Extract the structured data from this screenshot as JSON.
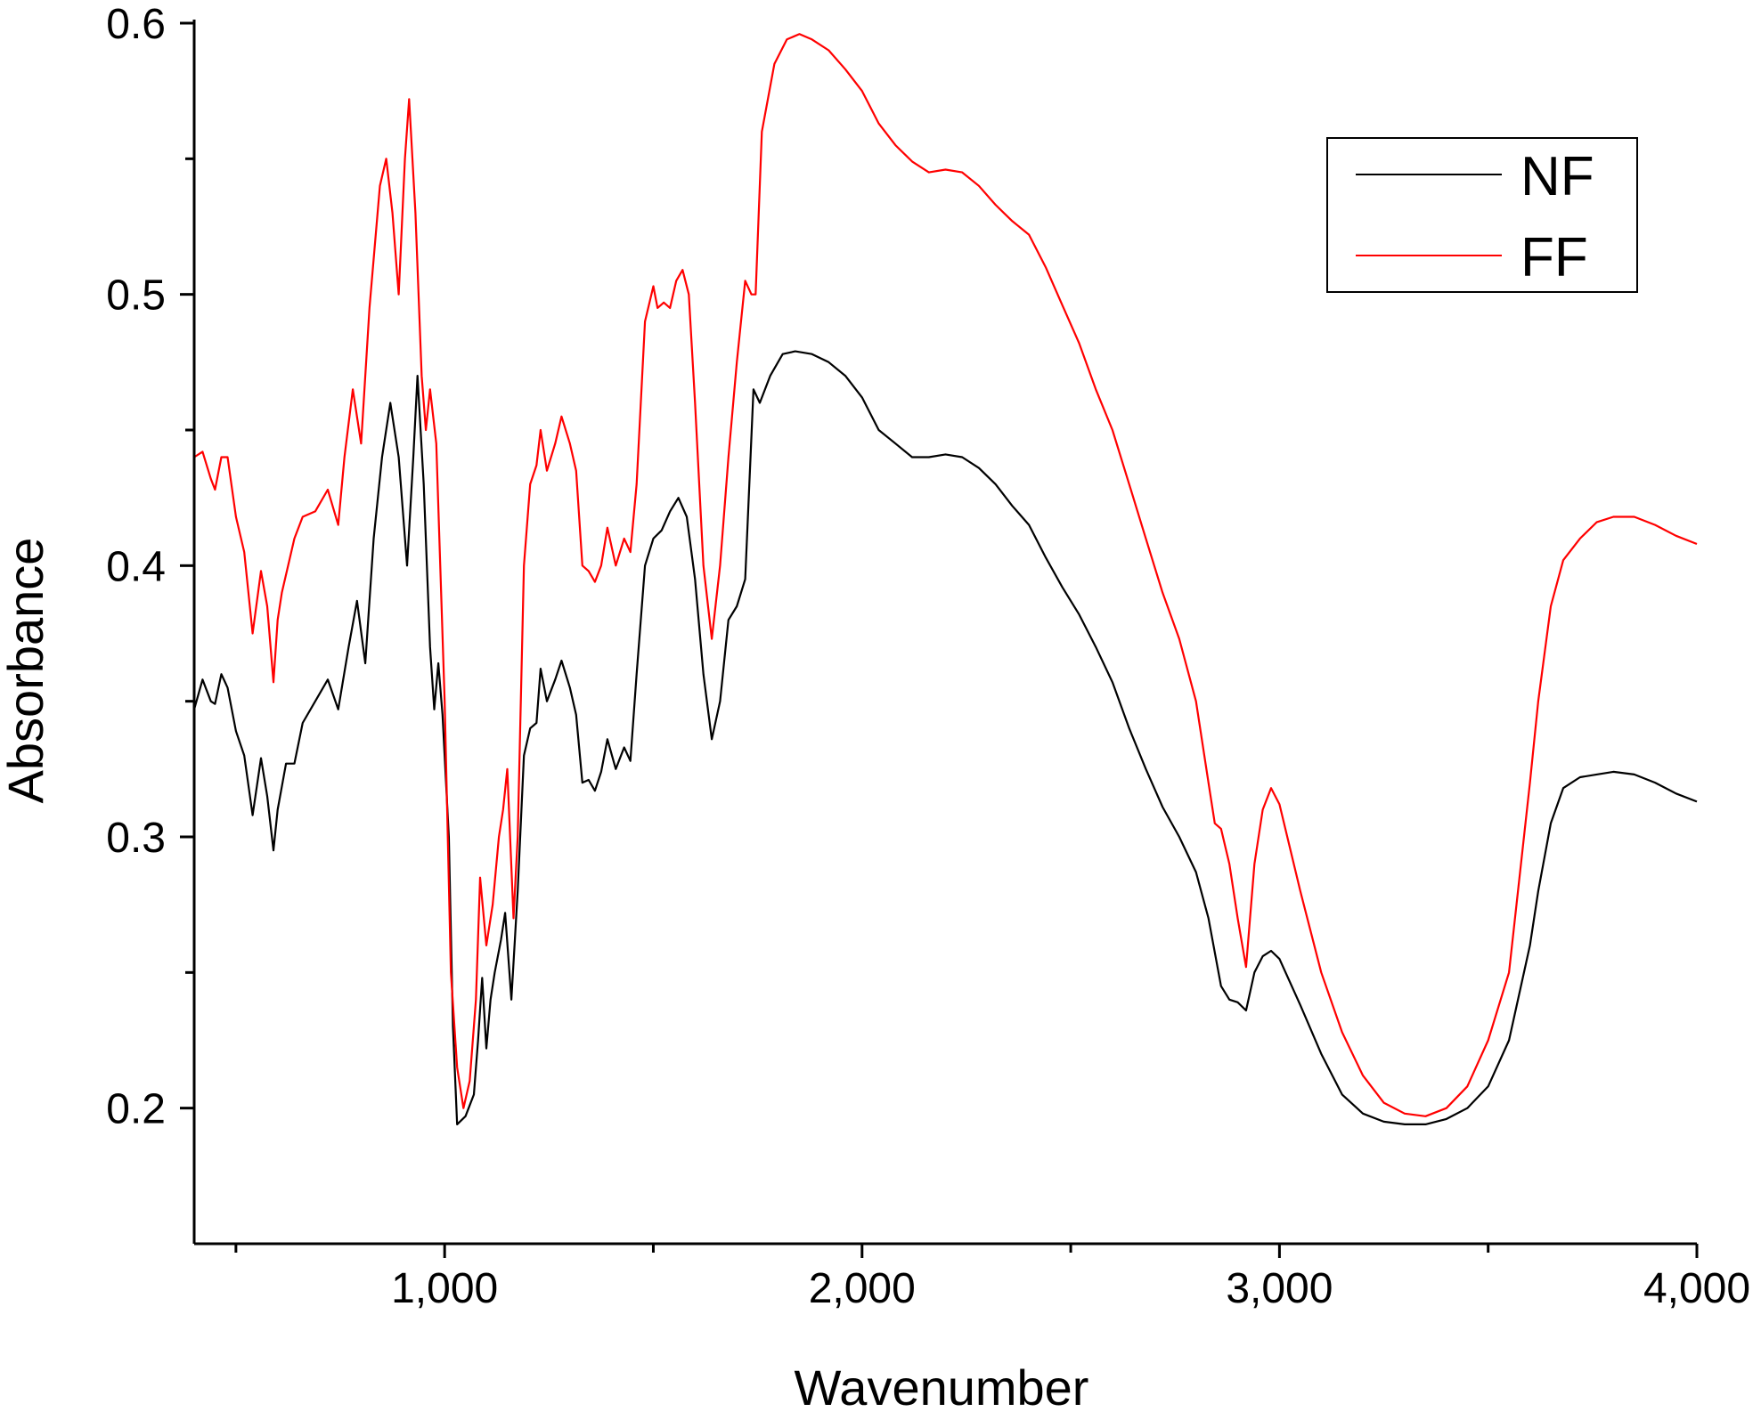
{
  "chart_data": {
    "type": "line",
    "xlabel": "Wavenumber",
    "ylabel": "Absorbance",
    "xlim": [
      400,
      4000
    ],
    "ylim": [
      0.15,
      0.6
    ],
    "x_ticks": [
      1000,
      2000,
      3000,
      4000
    ],
    "x_tick_labels": [
      "1,000",
      "2,000",
      "3,000",
      "4,000"
    ],
    "x_minor_ticks": [
      500,
      1500,
      2500,
      3500
    ],
    "y_ticks": [
      0.2,
      0.3,
      0.4,
      0.5,
      0.6
    ],
    "y_tick_labels": [
      "0.2",
      "0.3",
      "0.4",
      "0.5",
      "0.6"
    ],
    "y_minor_ticks": [
      0.25,
      0.35,
      0.45,
      0.55
    ],
    "grid": false,
    "legend_position": "top-right",
    "series": [
      {
        "name": "NF",
        "color": "#000000",
        "points": [
          [
            400,
            0.347
          ],
          [
            420,
            0.358
          ],
          [
            440,
            0.35
          ],
          [
            450,
            0.349
          ],
          [
            465,
            0.36
          ],
          [
            480,
            0.355
          ],
          [
            500,
            0.339
          ],
          [
            520,
            0.33
          ],
          [
            540,
            0.308
          ],
          [
            560,
            0.329
          ],
          [
            575,
            0.315
          ],
          [
            590,
            0.295
          ],
          [
            600,
            0.31
          ],
          [
            620,
            0.327
          ],
          [
            640,
            0.327
          ],
          [
            660,
            0.342
          ],
          [
            690,
            0.35
          ],
          [
            720,
            0.358
          ],
          [
            745,
            0.347
          ],
          [
            770,
            0.37
          ],
          [
            790,
            0.387
          ],
          [
            810,
            0.364
          ],
          [
            830,
            0.41
          ],
          [
            850,
            0.44
          ],
          [
            870,
            0.46
          ],
          [
            890,
            0.44
          ],
          [
            910,
            0.4
          ],
          [
            925,
            0.44
          ],
          [
            935,
            0.47
          ],
          [
            950,
            0.43
          ],
          [
            965,
            0.37
          ],
          [
            975,
            0.347
          ],
          [
            985,
            0.364
          ],
          [
            995,
            0.345
          ],
          [
            1010,
            0.3
          ],
          [
            1020,
            0.23
          ],
          [
            1030,
            0.194
          ],
          [
            1050,
            0.197
          ],
          [
            1070,
            0.205
          ],
          [
            1080,
            0.225
          ],
          [
            1090,
            0.248
          ],
          [
            1100,
            0.222
          ],
          [
            1110,
            0.24
          ],
          [
            1120,
            0.25
          ],
          [
            1135,
            0.262
          ],
          [
            1145,
            0.272
          ],
          [
            1160,
            0.24
          ],
          [
            1175,
            0.28
          ],
          [
            1190,
            0.33
          ],
          [
            1205,
            0.34
          ],
          [
            1220,
            0.342
          ],
          [
            1230,
            0.362
          ],
          [
            1245,
            0.35
          ],
          [
            1265,
            0.358
          ],
          [
            1280,
            0.365
          ],
          [
            1300,
            0.355
          ],
          [
            1315,
            0.345
          ],
          [
            1330,
            0.32
          ],
          [
            1345,
            0.321
          ],
          [
            1360,
            0.317
          ],
          [
            1375,
            0.324
          ],
          [
            1390,
            0.336
          ],
          [
            1410,
            0.325
          ],
          [
            1430,
            0.333
          ],
          [
            1445,
            0.328
          ],
          [
            1460,
            0.36
          ],
          [
            1480,
            0.4
          ],
          [
            1500,
            0.41
          ],
          [
            1520,
            0.413
          ],
          [
            1540,
            0.42
          ],
          [
            1560,
            0.425
          ],
          [
            1580,
            0.418
          ],
          [
            1600,
            0.395
          ],
          [
            1620,
            0.36
          ],
          [
            1640,
            0.336
          ],
          [
            1660,
            0.35
          ],
          [
            1680,
            0.38
          ],
          [
            1700,
            0.385
          ],
          [
            1720,
            0.395
          ],
          [
            1740,
            0.465
          ],
          [
            1755,
            0.46
          ],
          [
            1780,
            0.47
          ],
          [
            1810,
            0.478
          ],
          [
            1840,
            0.479
          ],
          [
            1880,
            0.478
          ],
          [
            1920,
            0.475
          ],
          [
            1960,
            0.47
          ],
          [
            2000,
            0.462
          ],
          [
            2040,
            0.45
          ],
          [
            2080,
            0.445
          ],
          [
            2120,
            0.44
          ],
          [
            2160,
            0.44
          ],
          [
            2200,
            0.441
          ],
          [
            2240,
            0.44
          ],
          [
            2280,
            0.436
          ],
          [
            2320,
            0.43
          ],
          [
            2360,
            0.422
          ],
          [
            2400,
            0.415
          ],
          [
            2440,
            0.403
          ],
          [
            2480,
            0.392
          ],
          [
            2520,
            0.382
          ],
          [
            2560,
            0.37
          ],
          [
            2600,
            0.357
          ],
          [
            2640,
            0.34
          ],
          [
            2680,
            0.325
          ],
          [
            2720,
            0.311
          ],
          [
            2760,
            0.3
          ],
          [
            2800,
            0.287
          ],
          [
            2830,
            0.27
          ],
          [
            2860,
            0.245
          ],
          [
            2880,
            0.24
          ],
          [
            2900,
            0.239
          ],
          [
            2920,
            0.236
          ],
          [
            2940,
            0.25
          ],
          [
            2960,
            0.256
          ],
          [
            2980,
            0.258
          ],
          [
            3000,
            0.255
          ],
          [
            3050,
            0.238
          ],
          [
            3100,
            0.22
          ],
          [
            3150,
            0.205
          ],
          [
            3200,
            0.198
          ],
          [
            3250,
            0.195
          ],
          [
            3300,
            0.194
          ],
          [
            3350,
            0.194
          ],
          [
            3400,
            0.196
          ],
          [
            3450,
            0.2
          ],
          [
            3500,
            0.208
          ],
          [
            3550,
            0.225
          ],
          [
            3600,
            0.26
          ],
          [
            3620,
            0.28
          ],
          [
            3650,
            0.305
          ],
          [
            3680,
            0.318
          ],
          [
            3720,
            0.322
          ],
          [
            3760,
            0.323
          ],
          [
            3800,
            0.324
          ],
          [
            3850,
            0.323
          ],
          [
            3900,
            0.32
          ],
          [
            3950,
            0.316
          ],
          [
            4000,
            0.313
          ]
        ]
      },
      {
        "name": "FF",
        "color": "#ff0000",
        "points": [
          [
            400,
            0.44
          ],
          [
            420,
            0.442
          ],
          [
            440,
            0.432
          ],
          [
            450,
            0.428
          ],
          [
            465,
            0.44
          ],
          [
            480,
            0.44
          ],
          [
            500,
            0.418
          ],
          [
            520,
            0.405
          ],
          [
            540,
            0.375
          ],
          [
            560,
            0.398
          ],
          [
            575,
            0.385
          ],
          [
            590,
            0.357
          ],
          [
            600,
            0.38
          ],
          [
            610,
            0.39
          ],
          [
            640,
            0.41
          ],
          [
            660,
            0.418
          ],
          [
            690,
            0.42
          ],
          [
            720,
            0.428
          ],
          [
            745,
            0.415
          ],
          [
            760,
            0.44
          ],
          [
            780,
            0.465
          ],
          [
            800,
            0.445
          ],
          [
            820,
            0.495
          ],
          [
            845,
            0.54
          ],
          [
            860,
            0.55
          ],
          [
            875,
            0.53
          ],
          [
            890,
            0.5
          ],
          [
            905,
            0.55
          ],
          [
            915,
            0.572
          ],
          [
            930,
            0.53
          ],
          [
            945,
            0.47
          ],
          [
            955,
            0.45
          ],
          [
            965,
            0.465
          ],
          [
            980,
            0.445
          ],
          [
            1000,
            0.35
          ],
          [
            1015,
            0.25
          ],
          [
            1030,
            0.215
          ],
          [
            1045,
            0.2
          ],
          [
            1060,
            0.21
          ],
          [
            1075,
            0.24
          ],
          [
            1085,
            0.285
          ],
          [
            1100,
            0.26
          ],
          [
            1115,
            0.275
          ],
          [
            1130,
            0.3
          ],
          [
            1140,
            0.31
          ],
          [
            1150,
            0.325
          ],
          [
            1165,
            0.27
          ],
          [
            1175,
            0.3
          ],
          [
            1190,
            0.4
          ],
          [
            1205,
            0.43
          ],
          [
            1220,
            0.437
          ],
          [
            1230,
            0.45
          ],
          [
            1245,
            0.435
          ],
          [
            1265,
            0.445
          ],
          [
            1280,
            0.455
          ],
          [
            1300,
            0.445
          ],
          [
            1315,
            0.435
          ],
          [
            1330,
            0.4
          ],
          [
            1345,
            0.398
          ],
          [
            1360,
            0.394
          ],
          [
            1375,
            0.4
          ],
          [
            1390,
            0.414
          ],
          [
            1410,
            0.4
          ],
          [
            1430,
            0.41
          ],
          [
            1445,
            0.405
          ],
          [
            1460,
            0.43
          ],
          [
            1480,
            0.49
          ],
          [
            1500,
            0.503
          ],
          [
            1510,
            0.495
          ],
          [
            1525,
            0.497
          ],
          [
            1540,
            0.495
          ],
          [
            1555,
            0.505
          ],
          [
            1570,
            0.509
          ],
          [
            1585,
            0.5
          ],
          [
            1600,
            0.46
          ],
          [
            1620,
            0.4
          ],
          [
            1640,
            0.373
          ],
          [
            1660,
            0.4
          ],
          [
            1680,
            0.44
          ],
          [
            1700,
            0.475
          ],
          [
            1720,
            0.505
          ],
          [
            1735,
            0.5
          ],
          [
            1745,
            0.5
          ],
          [
            1760,
            0.56
          ],
          [
            1790,
            0.585
          ],
          [
            1820,
            0.594
          ],
          [
            1850,
            0.596
          ],
          [
            1880,
            0.594
          ],
          [
            1920,
            0.59
          ],
          [
            1960,
            0.583
          ],
          [
            2000,
            0.575
          ],
          [
            2040,
            0.563
          ],
          [
            2080,
            0.555
          ],
          [
            2120,
            0.549
          ],
          [
            2160,
            0.545
          ],
          [
            2200,
            0.546
          ],
          [
            2240,
            0.545
          ],
          [
            2280,
            0.54
          ],
          [
            2320,
            0.533
          ],
          [
            2340,
            0.53
          ],
          [
            2360,
            0.527
          ],
          [
            2400,
            0.522
          ],
          [
            2440,
            0.51
          ],
          [
            2480,
            0.496
          ],
          [
            2520,
            0.482
          ],
          [
            2560,
            0.465
          ],
          [
            2600,
            0.45
          ],
          [
            2640,
            0.43
          ],
          [
            2680,
            0.41
          ],
          [
            2720,
            0.39
          ],
          [
            2760,
            0.373
          ],
          [
            2800,
            0.35
          ],
          [
            2830,
            0.32
          ],
          [
            2845,
            0.305
          ],
          [
            2860,
            0.303
          ],
          [
            2880,
            0.29
          ],
          [
            2900,
            0.27
          ],
          [
            2920,
            0.252
          ],
          [
            2940,
            0.29
          ],
          [
            2960,
            0.31
          ],
          [
            2980,
            0.318
          ],
          [
            3000,
            0.312
          ],
          [
            3050,
            0.28
          ],
          [
            3100,
            0.25
          ],
          [
            3150,
            0.228
          ],
          [
            3200,
            0.212
          ],
          [
            3250,
            0.202
          ],
          [
            3300,
            0.198
          ],
          [
            3350,
            0.197
          ],
          [
            3400,
            0.2
          ],
          [
            3450,
            0.208
          ],
          [
            3500,
            0.225
          ],
          [
            3550,
            0.25
          ],
          [
            3600,
            0.32
          ],
          [
            3620,
            0.35
          ],
          [
            3650,
            0.385
          ],
          [
            3680,
            0.402
          ],
          [
            3720,
            0.41
          ],
          [
            3760,
            0.416
          ],
          [
            3800,
            0.418
          ],
          [
            3850,
            0.418
          ],
          [
            3900,
            0.415
          ],
          [
            3950,
            0.411
          ],
          [
            4000,
            0.408
          ]
        ]
      }
    ]
  }
}
